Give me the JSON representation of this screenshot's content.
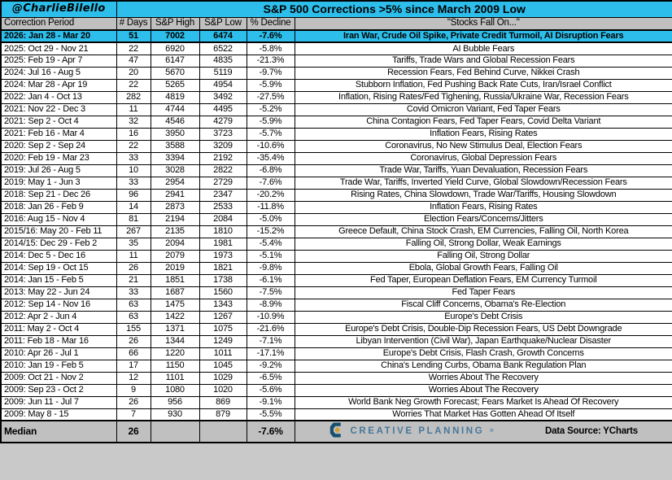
{
  "author_handle": "@CharlieBilello",
  "title": "S&P 500 Corrections >5% since March 2009 Low",
  "chart_data": {
    "type": "table",
    "title": "S&P 500 Corrections >5% since March 2009 Low",
    "columns": [
      "Correction Period",
      "# Days",
      "S&P High",
      "S&P Low",
      "% Decline",
      "\"Stocks Fall On...\""
    ],
    "rows": [
      {
        "period": "2026: Jan 28 - Mar 20",
        "days": 51,
        "high": 7002,
        "low": 6474,
        "decline": "-7.6%",
        "reason": "Iran War, Crude Oil Spike, Private Credit Turmoil, AI Disruption Fears",
        "highlight": true
      },
      {
        "period": "2025: Oct 29 - Nov 21",
        "days": 22,
        "high": 6920,
        "low": 6522,
        "decline": "-5.8%",
        "reason": "AI Bubble Fears"
      },
      {
        "period": "2025: Feb 19 - Apr 7",
        "days": 47,
        "high": 6147,
        "low": 4835,
        "decline": "-21.3%",
        "reason": "Tariffs, Trade Wars and Global Recession Fears"
      },
      {
        "period": "2024: Jul 16 - Aug 5",
        "days": 20,
        "high": 5670,
        "low": 5119,
        "decline": "-9.7%",
        "reason": "Recession Fears, Fed Behind Curve, Nikkei Crash"
      },
      {
        "period": "2024: Mar 28 - Apr 19",
        "days": 22,
        "high": 5265,
        "low": 4954,
        "decline": "-5.9%",
        "reason": "Stubborn Inflation, Fed Pushing Back Rate Cuts, Iran/Israel Conflict"
      },
      {
        "period": "2022: Jan 4 - Oct 13",
        "days": 282,
        "high": 4819,
        "low": 3492,
        "decline": "-27.5%",
        "reason": "Inflation, Rising Rates/Fed Tighening, Russia/Ukraine War, Recession Fears"
      },
      {
        "period": "2021: Nov 22 - Dec 3",
        "days": 11,
        "high": 4744,
        "low": 4495,
        "decline": "-5.2%",
        "reason": "Covid Omicron Variant, Fed Taper Fears"
      },
      {
        "period": "2021: Sep 2 - Oct 4",
        "days": 32,
        "high": 4546,
        "low": 4279,
        "decline": "-5.9%",
        "reason": "China Contagion Fears, Fed Taper Fears, Covid Delta Variant"
      },
      {
        "period": "2021: Feb 16 - Mar 4",
        "days": 16,
        "high": 3950,
        "low": 3723,
        "decline": "-5.7%",
        "reason": "Inflation Fears, Rising Rates"
      },
      {
        "period": "2020: Sep 2 - Sep 24",
        "days": 22,
        "high": 3588,
        "low": 3209,
        "decline": "-10.6%",
        "reason": "Coronavirus, No New Stimulus Deal, Election Fears"
      },
      {
        "period": "2020: Feb 19 - Mar 23",
        "days": 33,
        "high": 3394,
        "low": 2192,
        "decline": "-35.4%",
        "reason": "Coronavirus, Global Depression Fears"
      },
      {
        "period": "2019: Jul 26 - Aug 5",
        "days": 10,
        "high": 3028,
        "low": 2822,
        "decline": "-6.8%",
        "reason": "Trade War, Tariffs, Yuan Devaluation, Recession Fears"
      },
      {
        "period": "2019: May 1 - Jun 3",
        "days": 33,
        "high": 2954,
        "low": 2729,
        "decline": "-7.6%",
        "reason": "Trade War, Tariffs, Inverted Yield Curve, Global Slowdown/Recession Fears"
      },
      {
        "period": "2018: Sep 21 - Dec 26",
        "days": 96,
        "high": 2941,
        "low": 2347,
        "decline": "-20.2%",
        "reason": "Rising Rates, China Slowdown, Trade War/Tariffs, Housing Slowdown"
      },
      {
        "period": "2018: Jan 26 - Feb 9",
        "days": 14,
        "high": 2873,
        "low": 2533,
        "decline": "-11.8%",
        "reason": "Inflation Fears, Rising Rates"
      },
      {
        "period": "2016: Aug 15 - Nov 4",
        "days": 81,
        "high": 2194,
        "low": 2084,
        "decline": "-5.0%",
        "reason": "Election Fears/Concerns/Jitters"
      },
      {
        "period": "2015/16: May 20 - Feb 11",
        "days": 267,
        "high": 2135,
        "low": 1810,
        "decline": "-15.2%",
        "reason": "Greece Default, China Stock Crash, EM Currencies, Falling Oil, North Korea"
      },
      {
        "period": "2014/15: Dec 29 - Feb 2",
        "days": 35,
        "high": 2094,
        "low": 1981,
        "decline": "-5.4%",
        "reason": "Falling Oil, Strong Dollar, Weak Earnings"
      },
      {
        "period": "2014: Dec 5 - Dec 16",
        "days": 11,
        "high": 2079,
        "low": 1973,
        "decline": "-5.1%",
        "reason": "Falling Oil, Strong Dollar"
      },
      {
        "period": "2014: Sep 19 - Oct 15",
        "days": 26,
        "high": 2019,
        "low": 1821,
        "decline": "-9.8%",
        "reason": "Ebola, Global Growth Fears, Falling Oil"
      },
      {
        "period": "2014: Jan 15 - Feb 5",
        "days": 21,
        "high": 1851,
        "low": 1738,
        "decline": "-6.1%",
        "reason": "Fed Taper, European Deflation Fears, EM Currency Turmoil"
      },
      {
        "period": "2013: May 22 - Jun 24",
        "days": 33,
        "high": 1687,
        "low": 1560,
        "decline": "-7.5%",
        "reason": "Fed Taper Fears"
      },
      {
        "period": "2012: Sep 14 - Nov 16",
        "days": 63,
        "high": 1475,
        "low": 1343,
        "decline": "-8.9%",
        "reason": "Fiscal Cliff Concerns, Obama's Re-Election"
      },
      {
        "period": "2012: Apr 2 - Jun 4",
        "days": 63,
        "high": 1422,
        "low": 1267,
        "decline": "-10.9%",
        "reason": "Europe's Debt Crisis"
      },
      {
        "period": "2011: May 2 - Oct 4",
        "days": 155,
        "high": 1371,
        "low": 1075,
        "decline": "-21.6%",
        "reason": "Europe's Debt Crisis, Double-Dip Recession Fears, US Debt Downgrade"
      },
      {
        "period": "2011: Feb 18 - Mar 16",
        "days": 26,
        "high": 1344,
        "low": 1249,
        "decline": "-7.1%",
        "reason": "Libyan Intervention (Civil War), Japan Earthquake/Nuclear Disaster"
      },
      {
        "period": "2010: Apr 26 - Jul 1",
        "days": 66,
        "high": 1220,
        "low": 1011,
        "decline": "-17.1%",
        "reason": "Europe's Debt Crisis, Flash Crash, Growth Concerns"
      },
      {
        "period": "2010: Jan 19 - Feb 5",
        "days": 17,
        "high": 1150,
        "low": 1045,
        "decline": "-9.2%",
        "reason": "China's Lending Curbs, Obama Bank Regulation Plan"
      },
      {
        "period": "2009: Oct 21 - Nov 2",
        "days": 12,
        "high": 1101,
        "low": 1029,
        "decline": "-6.5%",
        "reason": "Worries About The Recovery"
      },
      {
        "period": "2009: Sep 23 - Oct 2",
        "days": 9,
        "high": 1080,
        "low": 1020,
        "decline": "-5.6%",
        "reason": "Worries About The Recovery"
      },
      {
        "period": "2009: Jun 11 - Jul 7",
        "days": 26,
        "high": 956,
        "low": 869,
        "decline": "-9.1%",
        "reason": "World Bank Neg Growth Forecast; Fears Market Is Ahead Of Recovery"
      },
      {
        "period": "2009: May 8 - 15",
        "days": 7,
        "high": 930,
        "low": 879,
        "decline": "-5.5%",
        "reason": "Worries That Market Has Gotten Ahead Of Itself"
      }
    ],
    "median": {
      "label": "Median",
      "days": 26,
      "decline": "-7.6%"
    }
  },
  "footer": {
    "logo": {
      "icon": "creative-planning-mark",
      "text": "CREATIVE PLANNING",
      "trademark": "®"
    },
    "data_source": "Data Source: YCharts"
  },
  "colors": {
    "accent_cyan": "#2dbeeb",
    "header_gray": "#c0c0c0",
    "border_black": "#000000",
    "logo_navy": "#17506e",
    "logo_gold": "#d0a12f",
    "logo_text_blue": "#47789a"
  }
}
